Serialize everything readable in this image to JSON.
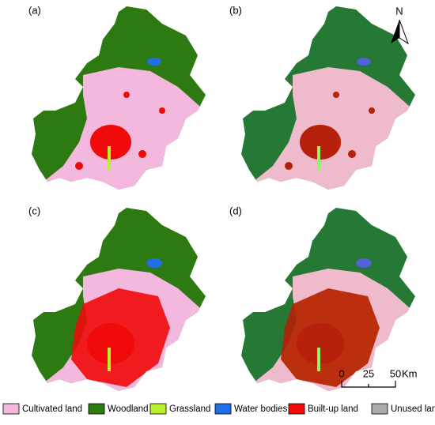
{
  "panels": [
    {
      "label": "(a)"
    },
    {
      "label": "(b)"
    },
    {
      "label": "(c)"
    },
    {
      "label": "(d)"
    }
  ],
  "north_arrow": {
    "label": "N"
  },
  "scale_bar": {
    "ticks": [
      0,
      25,
      50
    ],
    "unit": "Km"
  },
  "legend": [
    {
      "name": "Cultivated land",
      "color": "#f4b8de"
    },
    {
      "name": "Woodland",
      "color": "#2e7a12"
    },
    {
      "name": "Grassland",
      "color": "#b8f02a"
    },
    {
      "name": "Water bodies",
      "color": "#1f6fe8"
    },
    {
      "name": "Built-up land",
      "color": "#f00a0a"
    },
    {
      "name": "Unused land",
      "color": "#aaaaaa"
    }
  ]
}
